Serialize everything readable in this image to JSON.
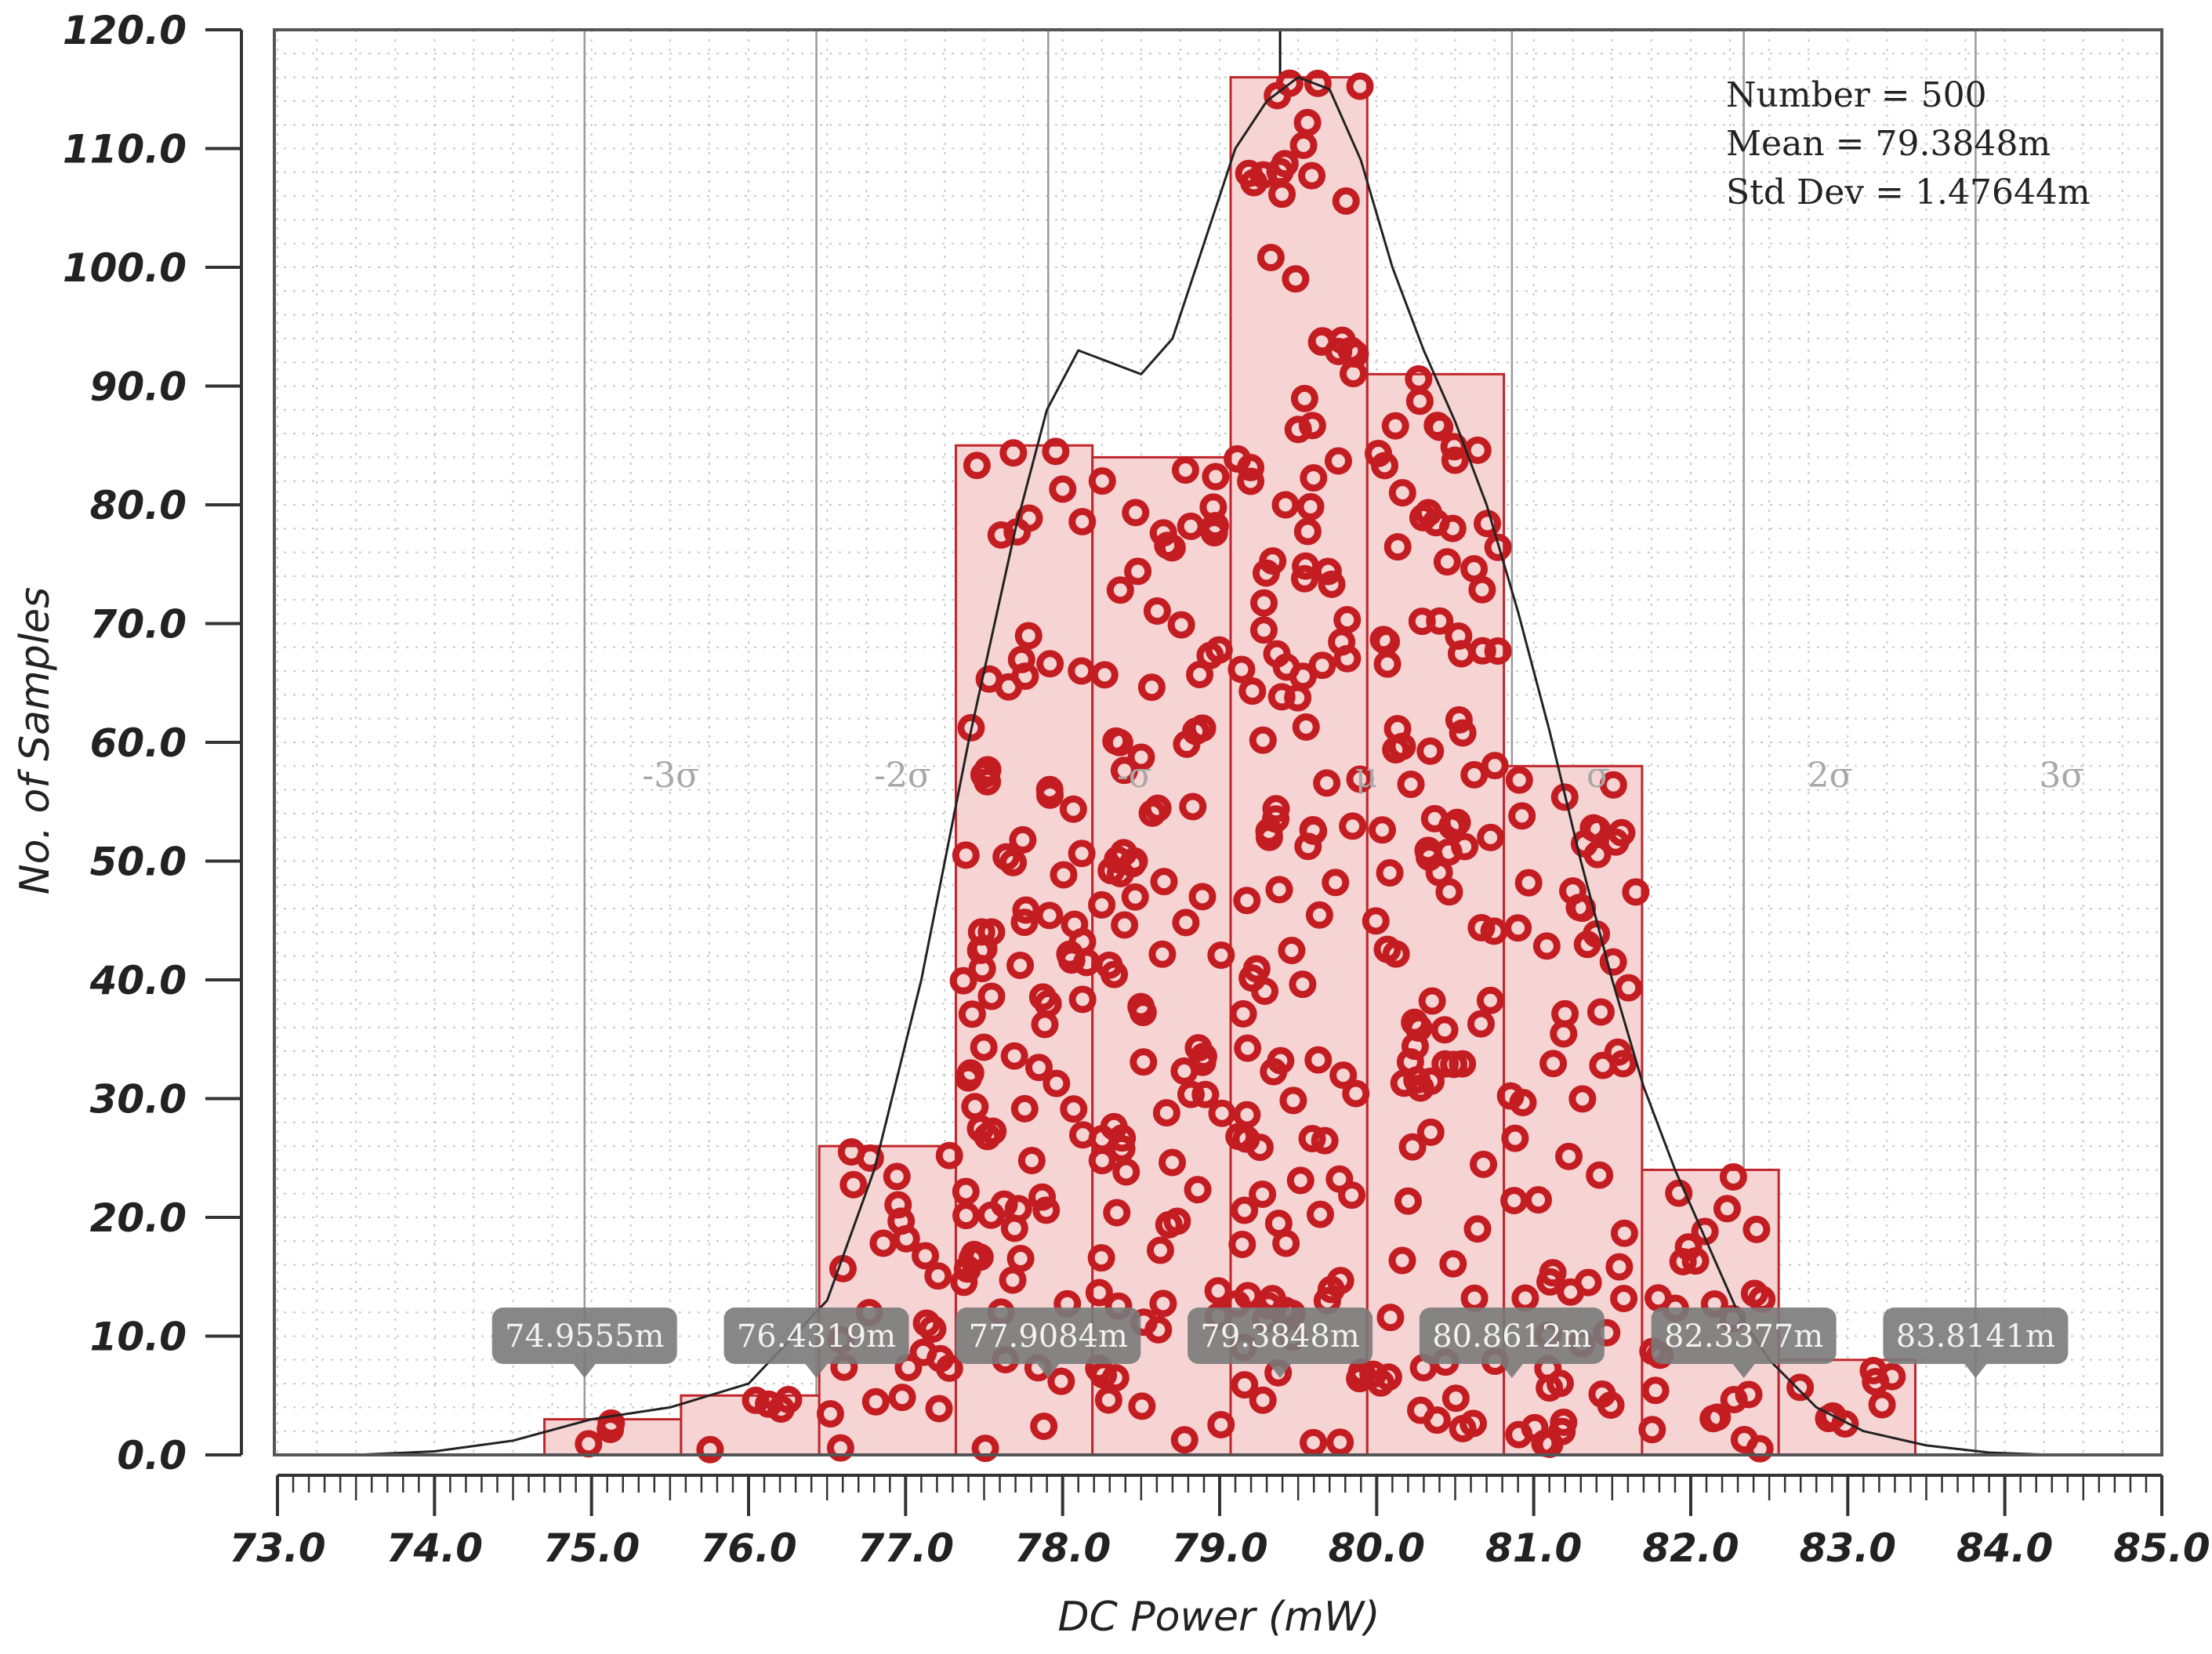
{
  "chart_data": {
    "type": "bar",
    "xlabel": "DC Power (mW)",
    "ylabel": "No. of Samples",
    "xlim": [
      73.0,
      85.0
    ],
    "ylim": [
      0.0,
      120.0
    ],
    "grid": true,
    "x_ticks": [
      "73.0",
      "74.0",
      "75.0",
      "76.0",
      "77.0",
      "78.0",
      "79.0",
      "80.0",
      "81.0",
      "82.0",
      "83.0",
      "84.0",
      "85.0"
    ],
    "y_ticks": [
      "0.0",
      "10.0",
      "20.0",
      "30.0",
      "40.0",
      "50.0",
      "60.0",
      "70.0",
      "80.0",
      "90.0",
      "100.0",
      "110.0",
      "120.0"
    ],
    "bins": [
      {
        "x0": 74.7,
        "x1": 75.57,
        "count": 3
      },
      {
        "x0": 75.57,
        "x1": 76.45,
        "count": 5
      },
      {
        "x0": 76.45,
        "x1": 77.32,
        "count": 26
      },
      {
        "x0": 77.32,
        "x1": 78.19,
        "count": 85
      },
      {
        "x0": 78.19,
        "x1": 79.07,
        "count": 84
      },
      {
        "x0": 79.07,
        "x1": 79.94,
        "count": 116
      },
      {
        "x0": 79.94,
        "x1": 80.81,
        "count": 91
      },
      {
        "x0": 80.81,
        "x1": 81.69,
        "count": 58
      },
      {
        "x0": 81.69,
        "x1": 82.56,
        "count": 24
      },
      {
        "x0": 82.56,
        "x1": 83.43,
        "count": 8
      }
    ],
    "density_curve": {
      "x": [
        73.5,
        74.0,
        74.5,
        75.0,
        75.5,
        76.0,
        76.5,
        76.8,
        77.1,
        77.4,
        77.7,
        77.9,
        78.1,
        78.3,
        78.5,
        78.7,
        78.9,
        79.1,
        79.3,
        79.5,
        79.7,
        79.9,
        80.1,
        80.3,
        80.5,
        80.7,
        80.9,
        81.1,
        81.3,
        81.5,
        81.7,
        81.9,
        82.1,
        82.3,
        82.5,
        82.8,
        83.1,
        83.5,
        83.9,
        84.3
      ],
      "y": [
        0,
        0.3,
        1.2,
        3,
        4,
        6,
        13,
        24,
        40,
        60,
        78,
        88,
        93,
        92,
        91,
        94,
        102,
        110,
        114,
        116,
        115,
        109,
        100,
        93,
        87,
        80,
        71,
        61,
        50,
        40,
        31,
        24,
        18,
        12,
        8,
        4,
        2,
        0.8,
        0.2,
        0
      ]
    },
    "stats": {
      "number": "Number = 500",
      "mean": "Mean = 79.3848m",
      "std": "Std Dev = 1.47644m"
    },
    "sigma_lines": [
      {
        "x": 74.9555,
        "label": "-3σ",
        "marker": "74.9555m"
      },
      {
        "x": 76.4319,
        "label": "-2σ",
        "marker": "76.4319m"
      },
      {
        "x": 77.9084,
        "label": "-σ",
        "marker": "77.9084m"
      },
      {
        "x": 79.3848,
        "label": "μ",
        "marker": "79.3848m"
      },
      {
        "x": 80.8612,
        "label": "σ",
        "marker": "80.8612m"
      },
      {
        "x": 82.3377,
        "label": "2σ",
        "marker": "82.3377m"
      },
      {
        "x": 83.8141,
        "label": "3σ",
        "marker": "83.8141m"
      }
    ],
    "colors": {
      "bar_fill": "#f6d4d4",
      "bar_stroke": "#c0262b",
      "point": "#c31d22",
      "curve": "#222222",
      "grid": "#c8c8c8",
      "sigma_line": "#9a9a9a",
      "mean_line": "#111111",
      "marker_bg": "#7a7a7a"
    },
    "sample_count": 500
  }
}
